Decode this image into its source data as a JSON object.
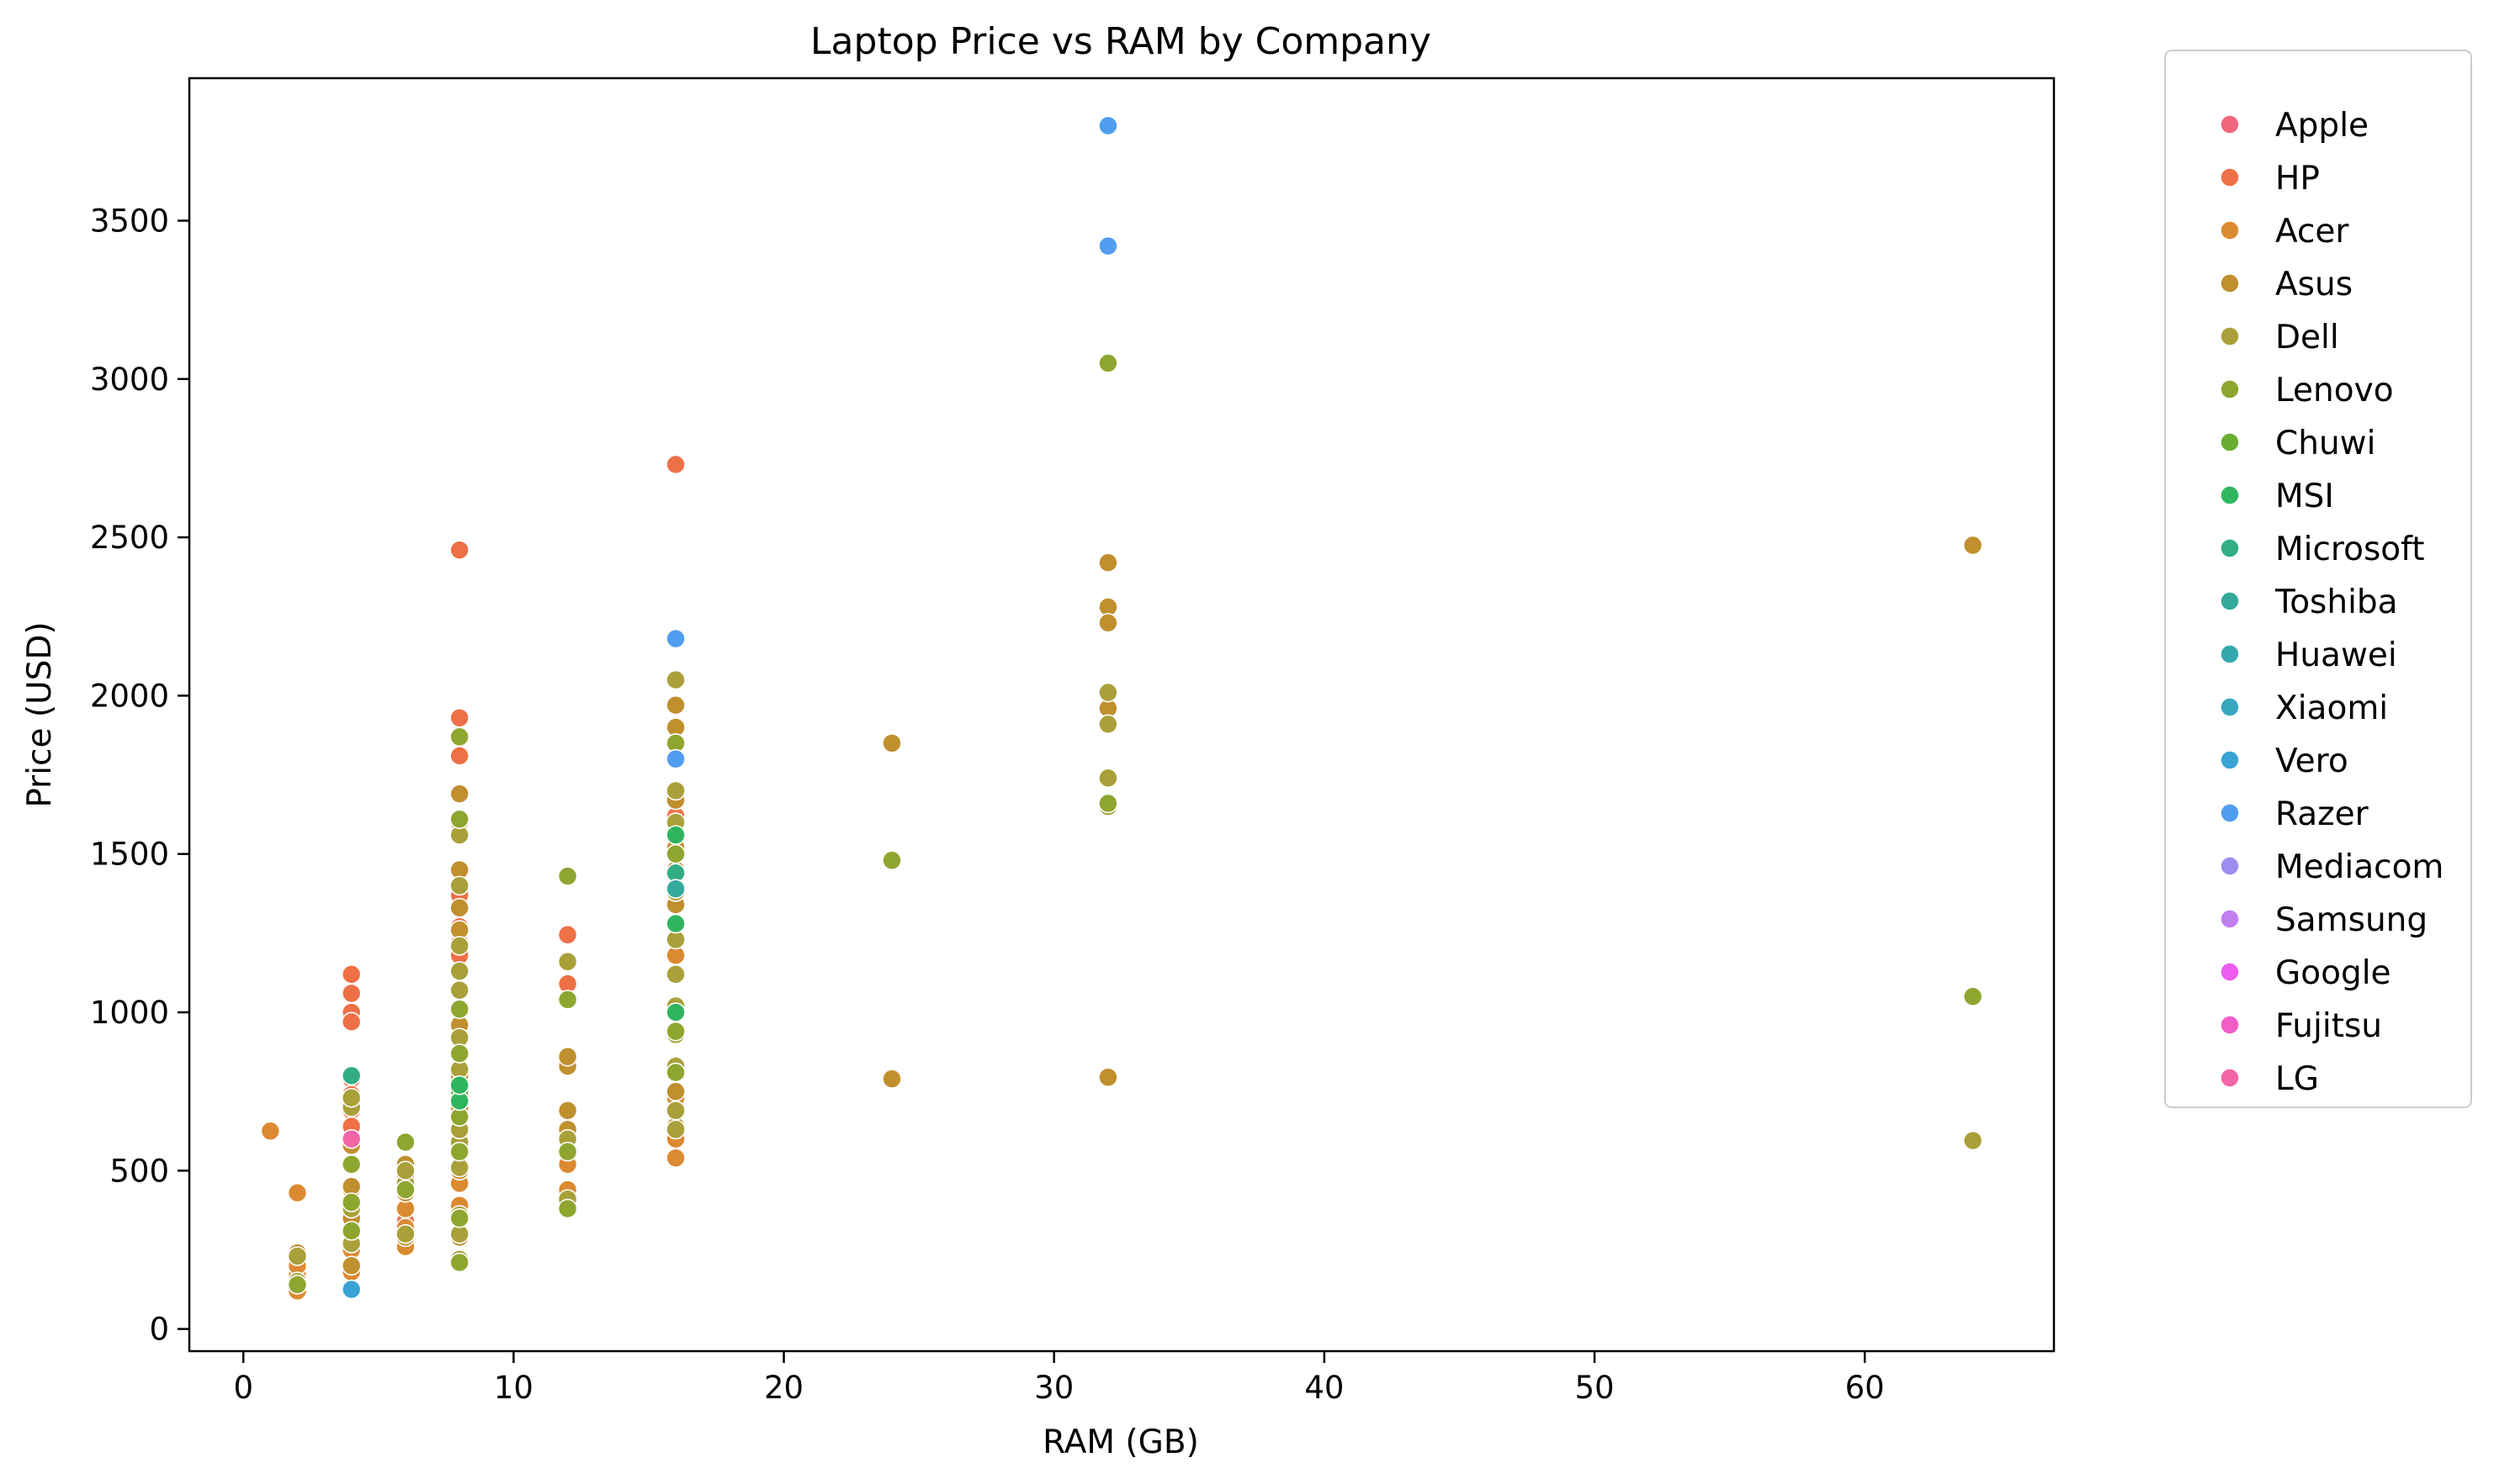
{
  "chart_data": {
    "type": "scatter",
    "title": "Laptop Price vs RAM by Company",
    "xlabel": "RAM (GB)",
    "ylabel": "Price (USD)",
    "xlim": [
      -2,
      67
    ],
    "ylim": [
      -70,
      3950
    ],
    "xticks": [
      0,
      10,
      20,
      30,
      40,
      50,
      60
    ],
    "yticks": [
      0,
      500,
      1000,
      1500,
      2000,
      2500,
      3000,
      3500
    ],
    "grid": false,
    "legend_position": "outside-right",
    "series": [
      {
        "name": "Apple",
        "color": "#f0677d",
        "points": []
      },
      {
        "name": "HP",
        "color": "#ee7046",
        "points": [
          [
            4,
            1120
          ],
          [
            4,
            1060
          ],
          [
            4,
            1000
          ],
          [
            4,
            970
          ],
          [
            4,
            790
          ],
          [
            4,
            740
          ],
          [
            4,
            690
          ],
          [
            4,
            640
          ],
          [
            6,
            480
          ],
          [
            6,
            340
          ],
          [
            8,
            2460
          ],
          [
            8,
            1930
          ],
          [
            8,
            1810
          ],
          [
            8,
            1600
          ],
          [
            8,
            1370
          ],
          [
            8,
            1270
          ],
          [
            8,
            1220
          ],
          [
            8,
            1180
          ],
          [
            12,
            1245
          ],
          [
            12,
            1090
          ],
          [
            12,
            830
          ],
          [
            16,
            2730
          ],
          [
            16,
            1620
          ]
        ]
      },
      {
        "name": "Acer",
        "color": "#dc8a32",
        "points": [
          [
            1,
            625
          ],
          [
            2,
            430
          ],
          [
            2,
            120
          ],
          [
            2,
            170
          ],
          [
            2,
            200
          ],
          [
            4,
            180
          ],
          [
            4,
            250
          ],
          [
            4,
            320
          ],
          [
            4,
            440
          ],
          [
            6,
            260
          ],
          [
            6,
            320
          ],
          [
            6,
            380
          ],
          [
            8,
            460
          ],
          [
            8,
            390
          ],
          [
            8,
            580
          ],
          [
            12,
            440
          ],
          [
            12,
            520
          ],
          [
            16,
            540
          ],
          [
            16,
            600
          ],
          [
            16,
            730
          ],
          [
            16,
            1180
          ]
        ]
      },
      {
        "name": "Asus",
        "color": "#c08f2e",
        "points": [
          [
            2,
            240
          ],
          [
            4,
            200
          ],
          [
            4,
            350
          ],
          [
            4,
            450
          ],
          [
            4,
            580
          ],
          [
            6,
            290
          ],
          [
            6,
            430
          ],
          [
            6,
            520
          ],
          [
            8,
            290
          ],
          [
            8,
            500
          ],
          [
            8,
            700
          ],
          [
            8,
            800
          ],
          [
            8,
            960
          ],
          [
            8,
            1130
          ],
          [
            8,
            1260
          ],
          [
            8,
            1330
          ],
          [
            8,
            1450
          ],
          [
            8,
            1690
          ],
          [
            12,
            630
          ],
          [
            12,
            690
          ],
          [
            12,
            830
          ],
          [
            12,
            860
          ],
          [
            16,
            640
          ],
          [
            16,
            750
          ],
          [
            16,
            1120
          ],
          [
            16,
            1340
          ],
          [
            16,
            1450
          ],
          [
            16,
            1520
          ],
          [
            16,
            1670
          ],
          [
            16,
            1800
          ],
          [
            16,
            1900
          ],
          [
            16,
            1970
          ],
          [
            24,
            1850
          ],
          [
            24,
            790
          ],
          [
            32,
            795
          ],
          [
            32,
            2420
          ],
          [
            32,
            2280
          ],
          [
            32,
            2230
          ],
          [
            32,
            1960
          ],
          [
            64,
            2475
          ]
        ]
      },
      {
        "name": "Dell",
        "color": "#a9a03a",
        "points": [
          [
            2,
            150
          ],
          [
            2,
            230
          ],
          [
            4,
            270
          ],
          [
            4,
            380
          ],
          [
            4,
            700
          ],
          [
            4,
            730
          ],
          [
            6,
            300
          ],
          [
            6,
            460
          ],
          [
            6,
            500
          ],
          [
            8,
            220
          ],
          [
            8,
            300
          ],
          [
            8,
            360
          ],
          [
            8,
            510
          ],
          [
            8,
            590
          ],
          [
            8,
            630
          ],
          [
            8,
            760
          ],
          [
            8,
            820
          ],
          [
            8,
            920
          ],
          [
            8,
            1070
          ],
          [
            8,
            1130
          ],
          [
            8,
            1210
          ],
          [
            8,
            1400
          ],
          [
            8,
            1560
          ],
          [
            12,
            410
          ],
          [
            12,
            600
          ],
          [
            12,
            1160
          ],
          [
            16,
            630
          ],
          [
            16,
            690
          ],
          [
            16,
            830
          ],
          [
            16,
            930
          ],
          [
            16,
            1020
          ],
          [
            16,
            1120
          ],
          [
            16,
            1230
          ],
          [
            16,
            1380
          ],
          [
            16,
            1600
          ],
          [
            16,
            1700
          ],
          [
            16,
            1850
          ],
          [
            16,
            2050
          ],
          [
            32,
            1650
          ],
          [
            32,
            1740
          ],
          [
            32,
            1910
          ],
          [
            32,
            2010
          ],
          [
            64,
            595
          ]
        ]
      },
      {
        "name": "Lenovo",
        "color": "#8ea62f",
        "points": [
          [
            2,
            140
          ],
          [
            4,
            310
          ],
          [
            4,
            400
          ],
          [
            4,
            520
          ],
          [
            6,
            590
          ],
          [
            6,
            440
          ],
          [
            8,
            210
          ],
          [
            8,
            350
          ],
          [
            8,
            560
          ],
          [
            8,
            670
          ],
          [
            8,
            870
          ],
          [
            8,
            1010
          ],
          [
            8,
            1610
          ],
          [
            8,
            1870
          ],
          [
            12,
            380
          ],
          [
            12,
            560
          ],
          [
            12,
            1040
          ],
          [
            12,
            1430
          ],
          [
            16,
            810
          ],
          [
            16,
            940
          ],
          [
            16,
            1500
          ],
          [
            16,
            1850
          ],
          [
            24,
            1480
          ],
          [
            32,
            3050
          ],
          [
            32,
            1660
          ],
          [
            64,
            1050
          ]
        ]
      },
      {
        "name": "Chuwi",
        "color": "#6aad32",
        "points": [
          [
            8,
            750
          ]
        ]
      },
      {
        "name": "MSI",
        "color": "#2fb55e",
        "points": [
          [
            8,
            720
          ],
          [
            8,
            770
          ],
          [
            16,
            1280
          ],
          [
            16,
            1000
          ],
          [
            16,
            1560
          ]
        ]
      },
      {
        "name": "Microsoft",
        "color": "#32ad85",
        "points": [
          [
            4,
            800
          ],
          [
            16,
            1440
          ]
        ]
      },
      {
        "name": "Toshiba",
        "color": "#33aa9c",
        "points": [
          [
            16,
            1390
          ]
        ]
      },
      {
        "name": "Huawei",
        "color": "#35a8ae",
        "points": []
      },
      {
        "name": "Xiaomi",
        "color": "#38a7be",
        "points": []
      },
      {
        "name": "Vero",
        "color": "#39a3d5",
        "points": [
          [
            4,
            125
          ]
        ]
      },
      {
        "name": "Razer",
        "color": "#519df0",
        "points": [
          [
            32,
            3800
          ],
          [
            32,
            3420
          ],
          [
            16,
            2180
          ],
          [
            16,
            1800
          ]
        ]
      },
      {
        "name": "Mediacom",
        "color": "#9c8ef0",
        "points": []
      },
      {
        "name": "Samsung",
        "color": "#c37ef0",
        "points": []
      },
      {
        "name": "Google",
        "color": "#ee5cf0",
        "points": []
      },
      {
        "name": "Fujitsu",
        "color": "#f05dc6",
        "points": []
      },
      {
        "name": "LG",
        "color": "#f365a7",
        "points": [
          [
            4,
            600
          ]
        ]
      }
    ]
  }
}
